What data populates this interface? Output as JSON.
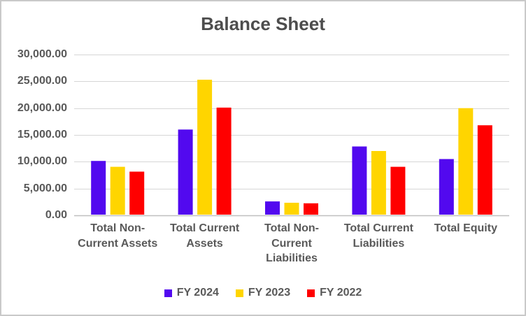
{
  "frame": {
    "border_color": "#C9C9C9",
    "background": "#FFFFFF"
  },
  "chart_data": {
    "type": "bar",
    "title": "Balance Sheet",
    "title_color": "#4D4D4D",
    "text_color": "#595959",
    "gridline_color": "#D6D6D6",
    "axis_line_color": "#BFBFBF",
    "grid": true,
    "legend_position": "bottom",
    "categories": [
      "Total Non-Current Assets",
      "Total Current Assets",
      "Total Non-Current Liabilities",
      "Total Current Liabilities",
      "Total Equity"
    ],
    "category_lines": [
      [
        "Total Non-",
        "Current Assets"
      ],
      [
        "Total Current",
        "Assets"
      ],
      [
        "Total Non-",
        "Current",
        "Liabilities"
      ],
      [
        "Total Current",
        "Liabilities"
      ],
      [
        "Total Equity"
      ]
    ],
    "series": [
      {
        "name": "FY 2024",
        "color": "#5209EF",
        "values": [
          10150,
          16000,
          2600,
          12850,
          10500
        ]
      },
      {
        "name": "FY 2023",
        "color": "#FFD500",
        "values": [
          9050,
          25300,
          2350,
          12000,
          20000
        ]
      },
      {
        "name": "FY 2022",
        "color": "#FF0000",
        "values": [
          8150,
          20100,
          2250,
          9050,
          16800
        ]
      }
    ],
    "y_axis": {
      "min": 0,
      "max": 30000,
      "step": 5000,
      "tick_format": "#,##0.00",
      "tick_labels": [
        "0.00",
        "5,000.00",
        "10,000.00",
        "15,000.00",
        "20,000.00",
        "25,000.00",
        "30,000.00"
      ]
    }
  }
}
